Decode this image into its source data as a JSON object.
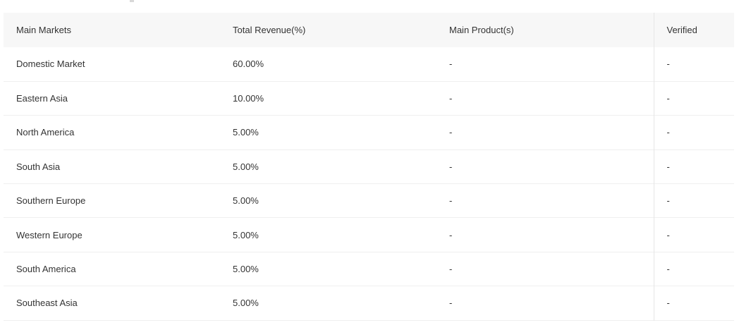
{
  "table": {
    "headers": [
      "Main Markets",
      "Total Revenue(%)",
      "Main Product(s)",
      "Verified"
    ],
    "rows": [
      [
        "Domestic Market",
        "60.00%",
        "-",
        "-"
      ],
      [
        "Eastern Asia",
        "10.00%",
        "-",
        "-"
      ],
      [
        "North America",
        "5.00%",
        "-",
        "-"
      ],
      [
        "South Asia",
        "5.00%",
        "-",
        "-"
      ],
      [
        "Southern Europe",
        "5.00%",
        "-",
        "-"
      ],
      [
        "Western Europe",
        "5.00%",
        "-",
        "-"
      ],
      [
        "South America",
        "5.00%",
        "-",
        "-"
      ],
      [
        "Southeast Asia",
        "5.00%",
        "-",
        "-"
      ]
    ]
  },
  "colors": {
    "header_bg": "#f7f7f7",
    "row_divider": "#efefef",
    "text": "#333333"
  }
}
